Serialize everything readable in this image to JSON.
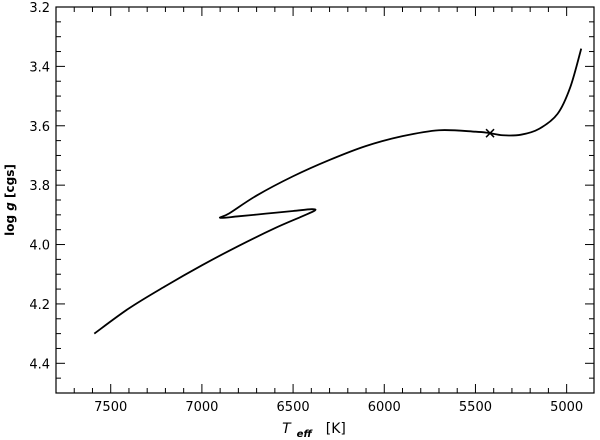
{
  "chart_data": {
    "type": "line",
    "title": "",
    "xlabel": {
      "main": "T",
      "sub": "eff",
      "unit": "[K]"
    },
    "ylabel": {
      "prefix": "log",
      "var": "g",
      "unit": "[cgs]"
    },
    "xlim": [
      7800,
      4850
    ],
    "ylim": [
      3.2,
      4.5
    ],
    "x_ticks": [
      7500,
      7000,
      6500,
      6000,
      5500,
      5000
    ],
    "x_tick_labels": [
      "7500",
      "7000",
      "6500",
      "6000",
      "5500",
      "5000"
    ],
    "y_ticks": [
      3.2,
      3.4,
      3.6,
      3.8,
      4.0,
      4.2,
      4.4
    ],
    "y_tick_labels": [
      "3.2",
      "3.4",
      "3.6",
      "3.8",
      "4.0",
      "4.2",
      "4.4"
    ],
    "grid": false,
    "series": [
      {
        "x": [
          7590,
          7400,
          7200,
          7000,
          6800,
          6600,
          6450,
          6380,
          6400,
          6500,
          6650,
          6800,
          6900,
          6850,
          6700,
          6500,
          6300,
          6100,
          5900,
          5700,
          5500,
          5430,
          5350,
          5250,
          5150,
          5050,
          4980,
          4920
        ],
        "y": [
          4.3,
          4.215,
          4.14,
          4.07,
          4.005,
          3.945,
          3.905,
          3.885,
          3.881,
          3.887,
          3.896,
          3.905,
          3.91,
          3.895,
          3.835,
          3.77,
          3.715,
          3.668,
          3.635,
          3.615,
          3.62,
          3.624,
          3.632,
          3.63,
          3.61,
          3.56,
          3.47,
          3.34
        ],
        "color": "#000000"
      }
    ],
    "annotations": [
      {
        "marker": "x",
        "x": 5420,
        "y": 3.625
      }
    ]
  }
}
